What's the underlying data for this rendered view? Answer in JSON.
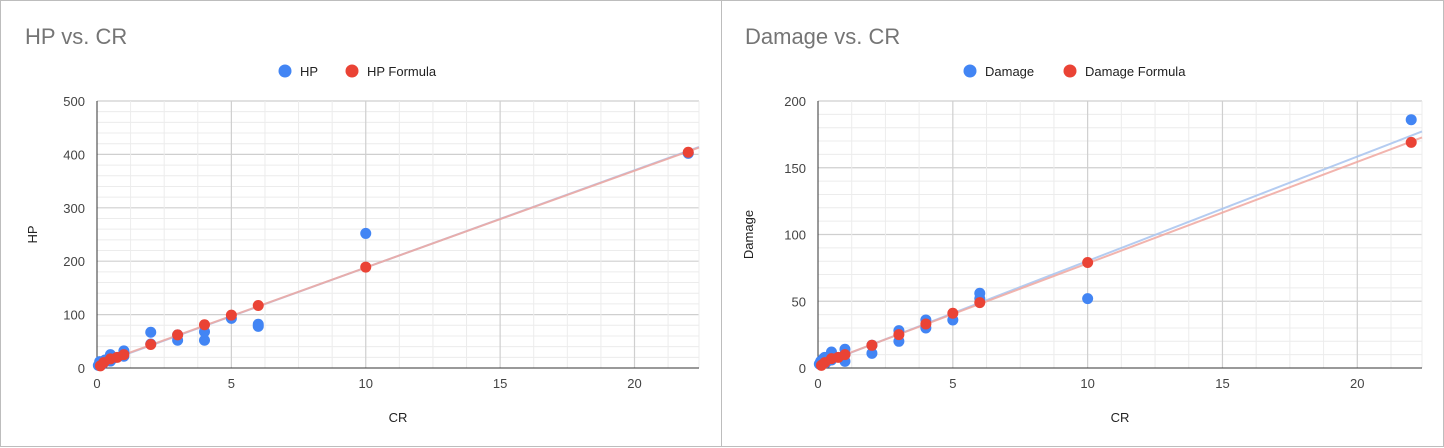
{
  "chart_data": [
    {
      "type": "scatter",
      "title": "HP  vs. CR",
      "xlabel": "CR",
      "ylabel": "HP",
      "xlim": [
        0,
        22.4
      ],
      "ylim": [
        0,
        500
      ],
      "xticks": [
        "0",
        "5",
        "10",
        "15",
        "20"
      ],
      "yticks": [
        "0",
        "100",
        "200",
        "300",
        "400",
        "500"
      ],
      "legend_position": "top",
      "grid": true,
      "series": [
        {
          "name": "HP",
          "color": "#4285F4",
          "trendline_color": "#a8c4ef",
          "points": [
            [
              0.05,
              5
            ],
            [
              0.1,
              12
            ],
            [
              0.2,
              7
            ],
            [
              0.25,
              10
            ],
            [
              0.3,
              15
            ],
            [
              0.5,
              13
            ],
            [
              0.5,
              22
            ],
            [
              0.5,
              25
            ],
            [
              0.6,
              18
            ],
            [
              1,
              22
            ],
            [
              1,
              28
            ],
            [
              1,
              32
            ],
            [
              2,
              45
            ],
            [
              2,
              67
            ],
            [
              3,
              52
            ],
            [
              3,
              62
            ],
            [
              4,
              52
            ],
            [
              4,
              68
            ],
            [
              5,
              93
            ],
            [
              6,
              78
            ],
            [
              6,
              82
            ],
            [
              10,
              252
            ],
            [
              22,
              402
            ]
          ]
        },
        {
          "name": "HP Formula",
          "color": "#EA4335",
          "trendline_color": "#f0a8a0",
          "points": [
            [
              0.125,
              4
            ],
            [
              0.25,
              10
            ],
            [
              0.5,
              17
            ],
            [
              0.75,
              20
            ],
            [
              1,
              25
            ],
            [
              2,
              44
            ],
            [
              3,
              62
            ],
            [
              4,
              81
            ],
            [
              5,
              99
            ],
            [
              6,
              117
            ],
            [
              10,
              189
            ],
            [
              22,
              404
            ]
          ]
        }
      ]
    },
    {
      "type": "scatter",
      "title": "Damage vs. CR",
      "xlabel": "CR",
      "ylabel": "Damage",
      "xlim": [
        0,
        22.4
      ],
      "ylim": [
        0,
        200
      ],
      "xticks": [
        "0",
        "5",
        "10",
        "15",
        "20"
      ],
      "yticks": [
        "0",
        "50",
        "100",
        "150",
        "200"
      ],
      "legend_position": "top",
      "grid": true,
      "series": [
        {
          "name": "Damage",
          "color": "#4285F4",
          "trendline_color": "#a8c4ef",
          "points": [
            [
              0.05,
              3
            ],
            [
              0.1,
              5
            ],
            [
              0.2,
              7
            ],
            [
              0.25,
              8
            ],
            [
              0.3,
              4
            ],
            [
              0.5,
              6
            ],
            [
              0.5,
              10
            ],
            [
              0.5,
              12
            ],
            [
              0.6,
              8
            ],
            [
              1,
              5
            ],
            [
              1,
              10
            ],
            [
              1,
              14
            ],
            [
              2,
              11
            ],
            [
              2,
              17
            ],
            [
              3,
              20
            ],
            [
              3,
              28
            ],
            [
              4,
              30
            ],
            [
              4,
              36
            ],
            [
              5,
              36
            ],
            [
              6,
              52
            ],
            [
              6,
              56
            ],
            [
              10,
              52
            ],
            [
              22,
              186
            ]
          ]
        },
        {
          "name": "Damage Formula",
          "color": "#EA4335",
          "trendline_color": "#f0a8a0",
          "points": [
            [
              0.125,
              2
            ],
            [
              0.25,
              4
            ],
            [
              0.5,
              7
            ],
            [
              0.75,
              8
            ],
            [
              1,
              10
            ],
            [
              2,
              17
            ],
            [
              3,
              25
            ],
            [
              4,
              33
            ],
            [
              5,
              41
            ],
            [
              6,
              49
            ],
            [
              10,
              79
            ],
            [
              22,
              169
            ]
          ]
        }
      ]
    }
  ]
}
